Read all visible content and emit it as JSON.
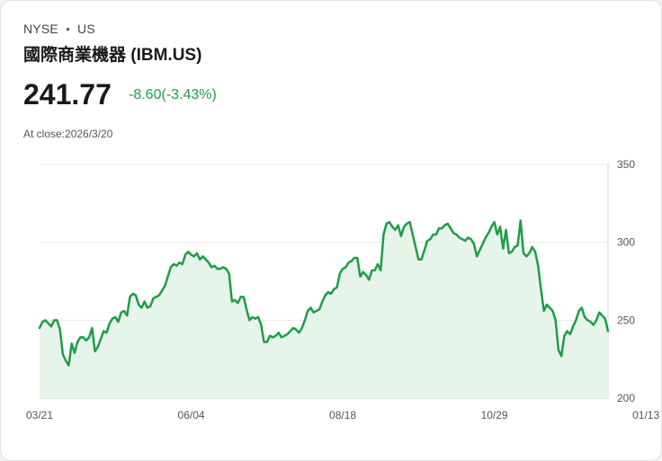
{
  "header": {
    "exchange": "NYSE",
    "separator": "•",
    "country": "US",
    "name": "國際商業機器 (IBM.US)",
    "price": "241.77",
    "change": "-8.60(-3.43%)",
    "close_label": "At close:2026/3/20"
  },
  "colors": {
    "line": "#1f9d45",
    "fill": "#e6f4ea",
    "grid": "#e8e8e8",
    "change": "#1f9d45"
  },
  "chart_data": {
    "type": "area",
    "title": "",
    "xlabel": "",
    "ylabel": "",
    "ylim": [
      200,
      350
    ],
    "yticks": [
      200,
      250,
      300,
      350
    ],
    "xtick_labels": [
      "03/21",
      "06/04",
      "08/18",
      "10/29",
      "01/13"
    ],
    "xtick_indices": [
      0,
      52,
      104,
      156,
      208
    ],
    "y_axis_position": "right",
    "series": [
      {
        "name": "IBM.US",
        "values": [
          245,
          249,
          250,
          248,
          246,
          250,
          250,
          244,
          228,
          224,
          221,
          235,
          229,
          236,
          239,
          239,
          237,
          239,
          245,
          230,
          233,
          238,
          243,
          242,
          248,
          251,
          252,
          249,
          255,
          256,
          253,
          265,
          267,
          266,
          260,
          258,
          262,
          258,
          259,
          264,
          265,
          266,
          269,
          272,
          278,
          284,
          286,
          285,
          287,
          286,
          292,
          294,
          292,
          291,
          293,
          289,
          291,
          289,
          287,
          284,
          285,
          283,
          283,
          284,
          283,
          280,
          262,
          263,
          261,
          265,
          265,
          257,
          250,
          252,
          251,
          252,
          247,
          236,
          236,
          240,
          239,
          240,
          242,
          239,
          240,
          241,
          243,
          245,
          244,
          242,
          245,
          250,
          256,
          258,
          255,
          256,
          257,
          262,
          266,
          268,
          267,
          270,
          271,
          280,
          283,
          284,
          287,
          288,
          290,
          290,
          278,
          281,
          279,
          276,
          282,
          282,
          286,
          282,
          305,
          312,
          313,
          310,
          308,
          311,
          304,
          310,
          312,
          313,
          305,
          297,
          289,
          289,
          295,
          301,
          302,
          305,
          305,
          309,
          309,
          311,
          312,
          309,
          306,
          305,
          303,
          302,
          301,
          303,
          302,
          299,
          291,
          295,
          299,
          303,
          306,
          310,
          313,
          305,
          310,
          296,
          308,
          293,
          294,
          297,
          298,
          314,
          293,
          291,
          293,
          297,
          294,
          285,
          270,
          256,
          260,
          258,
          256,
          250,
          231,
          227,
          240,
          243,
          241,
          246,
          250,
          256,
          258,
          252,
          250,
          249,
          247,
          250,
          255,
          253,
          251,
          243
        ]
      }
    ]
  }
}
